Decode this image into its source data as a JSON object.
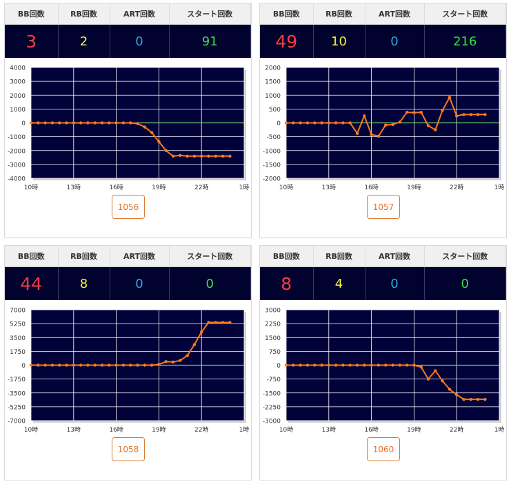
{
  "headers": {
    "bb": "BB回数",
    "rb": "RB回数",
    "art": "ART回数",
    "start": "スタート回数"
  },
  "colors": {
    "bb": "#ff3b3b",
    "rb": "#f5f53c",
    "art": "#2ea6e6",
    "start": "#39e04a",
    "plot_bg": "#02023a",
    "line": "#ff7a1a",
    "zero_line": "#66dd66"
  },
  "panels": [
    {
      "bb": "3",
      "rb": "2",
      "art": "0",
      "start": "91",
      "machine": "1056"
    },
    {
      "bb": "49",
      "rb": "10",
      "art": "0",
      "start": "216",
      "machine": "1057"
    },
    {
      "bb": "44",
      "rb": "8",
      "art": "0",
      "start": "0",
      "machine": "1058"
    },
    {
      "bb": "8",
      "rb": "4",
      "art": "0",
      "start": "0",
      "machine": "1060"
    }
  ],
  "chart_data": [
    {
      "type": "line",
      "xlim": [
        10,
        25
      ],
      "xticks": [
        10,
        13,
        16,
        19,
        22,
        25
      ],
      "xtick_labels": [
        "10時",
        "13時",
        "16時",
        "19時",
        "22時",
        "1時"
      ],
      "ylim": [
        -4000,
        4000
      ],
      "yticks": [
        4000,
        3000,
        2000,
        1000,
        0,
        -1000,
        -2000,
        -3000,
        -4000
      ],
      "grid": true,
      "series": [
        {
          "x": [
            10,
            10.5,
            11,
            11.5,
            12,
            12.5,
            13,
            13.5,
            14,
            14.5,
            15,
            15.5,
            16,
            16.5,
            17,
            17.5,
            18,
            18.5,
            19,
            19.5,
            20,
            20.5,
            21,
            21.5,
            22,
            22.5,
            23,
            23.5,
            24
          ],
          "values": [
            0,
            0,
            0,
            0,
            0,
            0,
            0,
            0,
            0,
            0,
            0,
            0,
            0,
            0,
            0,
            -50,
            -300,
            -700,
            -1350,
            -2000,
            -2400,
            -2350,
            -2400,
            -2400,
            -2400,
            -2400,
            -2400,
            -2400,
            -2400
          ]
        }
      ]
    },
    {
      "type": "line",
      "xlim": [
        10,
        25
      ],
      "xticks": [
        10,
        13,
        16,
        19,
        22,
        25
      ],
      "xtick_labels": [
        "10時",
        "13時",
        "16時",
        "19時",
        "22時",
        "1時"
      ],
      "ylim": [
        -2000,
        2000
      ],
      "yticks": [
        2000,
        1500,
        1000,
        500,
        0,
        -500,
        -1000,
        -1500,
        -2000
      ],
      "grid": true,
      "series": [
        {
          "x": [
            10,
            10.5,
            11,
            11.5,
            12,
            12.5,
            13,
            13.5,
            14,
            14.5,
            15,
            15.5,
            16,
            16.5,
            17,
            17.5,
            18,
            18.5,
            19,
            19.5,
            20,
            20.5,
            21,
            21.5,
            22,
            22.5,
            23,
            23.5,
            24
          ],
          "values": [
            0,
            0,
            0,
            0,
            0,
            0,
            0,
            0,
            0,
            0,
            -380,
            250,
            -420,
            -480,
            -80,
            -60,
            30,
            380,
            370,
            380,
            -100,
            -250,
            450,
            920,
            250,
            300,
            300,
            300,
            300
          ]
        }
      ]
    },
    {
      "type": "line",
      "xlim": [
        10,
        25
      ],
      "xticks": [
        10,
        13,
        16,
        19,
        22,
        25
      ],
      "xtick_labels": [
        "10時",
        "13時",
        "16時",
        "19時",
        "22時",
        "1時"
      ],
      "ylim": [
        -7000,
        7000
      ],
      "yticks": [
        7000,
        5250,
        3500,
        1750,
        0,
        -1750,
        -3500,
        -5250,
        -7000
      ],
      "grid": true,
      "series": [
        {
          "x": [
            10,
            10.5,
            11,
            11.5,
            12,
            12.5,
            13,
            13.5,
            14,
            14.5,
            15,
            15.5,
            16,
            16.5,
            17,
            17.5,
            18,
            18.5,
            19,
            19.5,
            20,
            20.5,
            21,
            21.5,
            22,
            22.5,
            23,
            23.5,
            24
          ],
          "values": [
            0,
            0,
            0,
            0,
            0,
            0,
            0,
            0,
            0,
            0,
            0,
            0,
            0,
            0,
            0,
            0,
            0,
            0,
            100,
            450,
            400,
            600,
            1200,
            2600,
            4200,
            5400,
            5400,
            5400,
            5400
          ]
        }
      ]
    },
    {
      "type": "line",
      "xlim": [
        10,
        25
      ],
      "xticks": [
        10,
        13,
        16,
        19,
        22,
        25
      ],
      "xtick_labels": [
        "10時",
        "13時",
        "16時",
        "19時",
        "22時",
        "1時"
      ],
      "ylim": [
        -3000,
        3000
      ],
      "yticks": [
        3000,
        2250,
        1500,
        750,
        0,
        -750,
        -1500,
        -2250,
        -3000
      ],
      "grid": true,
      "series": [
        {
          "x": [
            10,
            10.5,
            11,
            11.5,
            12,
            12.5,
            13,
            13.5,
            14,
            14.5,
            15,
            15.5,
            16,
            16.5,
            17,
            17.5,
            18,
            18.5,
            19,
            19.5,
            20,
            20.5,
            21,
            21.5,
            22,
            22.5,
            23,
            23.5,
            24
          ],
          "values": [
            0,
            0,
            0,
            0,
            0,
            0,
            0,
            0,
            0,
            0,
            0,
            0,
            0,
            0,
            0,
            0,
            0,
            0,
            0,
            -100,
            -750,
            -300,
            -850,
            -1300,
            -1600,
            -1850,
            -1850,
            -1850,
            -1850
          ]
        }
      ]
    }
  ]
}
